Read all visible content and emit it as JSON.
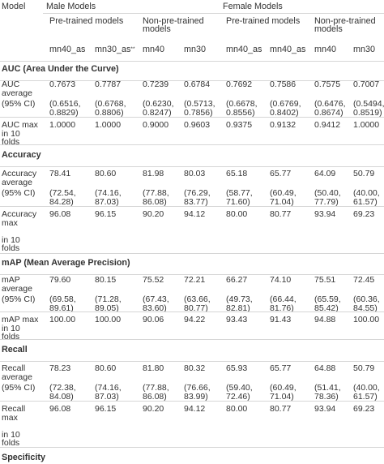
{
  "header": {
    "model": "Model",
    "male": "Male Models",
    "female": "Female Models",
    "pretrained": "Pre-trained models",
    "nonpretrained_1": "Non-pre-trained",
    "nonpretrained_2": "models",
    "cols": [
      "mn40_as",
      "mn30_as",
      "mn40",
      "mn30",
      "mn40_as",
      "mn40_as",
      "mn40",
      "mn30"
    ],
    "col2_sup": "**"
  },
  "sections": {
    "auc": "AUC (Area Under the Curve)",
    "accuracy": "Accuracy",
    "map": "mAP (Mean Average Precision)",
    "recall": "Recall",
    "specificity": "Specificity"
  },
  "auc": {
    "avg_label": [
      "AUC",
      "average"
    ],
    "ci_label": "(95% CI)",
    "avg": [
      "0.7673",
      "0.7787",
      "0.7239",
      "0.6784",
      "0.7692",
      "0.7586",
      "0.7575",
      "0.7007"
    ],
    "ci": [
      [
        "(0.6516,",
        "0.8829)"
      ],
      [
        "(0.6768,",
        "0.8806)"
      ],
      [
        "(0.6230,",
        "0.8247)"
      ],
      [
        "(0.5713,",
        "0.7856)"
      ],
      [
        "(0.6678,",
        "0.8556)"
      ],
      [
        "(0.6769,",
        "0.8402)"
      ],
      [
        "(0.6476,",
        "0.8674)"
      ],
      [
        "(0.5494,",
        "0.8519)"
      ]
    ],
    "max_label": [
      "AUC max",
      "in 10",
      "folds"
    ],
    "max": [
      "1.0000",
      "1.0000",
      "0.9000",
      "0.9603",
      "0.9375",
      "0.9132",
      "0.9412",
      "1.0000"
    ]
  },
  "accuracy": {
    "avg_label": [
      "Accuracy",
      "average"
    ],
    "ci_label": "(95% CI)",
    "avg": [
      "78.41",
      "80.60",
      "81.98",
      "80.03",
      "65.18",
      "65.77",
      "64.09",
      "50.79"
    ],
    "ci": [
      [
        "(72.54,",
        "84.28)"
      ],
      [
        "(74.16,",
        "87.03)"
      ],
      [
        "(77.88,",
        "86.08)"
      ],
      [
        "(76.29,",
        "83.77)"
      ],
      [
        "(58.77,",
        "71.60)"
      ],
      [
        "(60.49,",
        "71.04)"
      ],
      [
        "(50.40,",
        "77.79)"
      ],
      [
        "(40.00,",
        "61.57)"
      ]
    ],
    "max_label": [
      "Accuracy",
      "max",
      "",
      "in 10",
      "folds"
    ],
    "max": [
      "96.08",
      "96.15",
      "90.20",
      "94.12",
      "80.00",
      "80.77",
      "93.94",
      "69.23"
    ]
  },
  "map": {
    "avg_label": [
      "mAP",
      "average"
    ],
    "ci_label": "(95% CI)",
    "avg": [
      "79.60",
      "80.15",
      "75.52",
      "72.21",
      "66.27",
      "74.10",
      "75.51",
      "72.45"
    ],
    "ci": [
      [
        "(69.58,",
        "89.61)"
      ],
      [
        "(71.28,",
        "89.05)"
      ],
      [
        "(67.43,",
        "83.60)"
      ],
      [
        "(63.66,",
        "80.77)"
      ],
      [
        "(49.73,",
        "82.81)"
      ],
      [
        "(66.44,",
        "81.76)"
      ],
      [
        "(65.59,",
        "85.42)"
      ],
      [
        "(60.36,",
        "84.55)"
      ]
    ],
    "max_label": [
      "mAP max",
      "in 10",
      "folds"
    ],
    "max": [
      "100.00",
      "100.00",
      "90.06",
      "94.22",
      "93.43",
      "91.43",
      "94.88",
      "100.00"
    ]
  },
  "recall": {
    "avg_label": [
      "Recall",
      "average"
    ],
    "ci_label": "(95% CI)",
    "avg": [
      "78.23",
      "80.60",
      "81.80",
      "80.32",
      "65.93",
      "65.77",
      "64.88",
      "50.79"
    ],
    "ci": [
      [
        "(72.38,",
        "84.08)"
      ],
      [
        "(74.16,",
        "87.03)"
      ],
      [
        "(77.88,",
        "86.08)"
      ],
      [
        "(76.66,",
        "83.99)"
      ],
      [
        "(59.40,",
        "72.46)"
      ],
      [
        "(60.49,",
        "71.04)"
      ],
      [
        "(51.41,",
        "78.36)"
      ],
      [
        "(40.00,",
        "61.57)"
      ]
    ],
    "max_label": [
      "Recall",
      "max",
      "",
      "in 10",
      "folds"
    ],
    "max": [
      "96.08",
      "96.15",
      "90.20",
      "94.12",
      "80.00",
      "80.77",
      "93.94",
      "69.23"
    ]
  }
}
